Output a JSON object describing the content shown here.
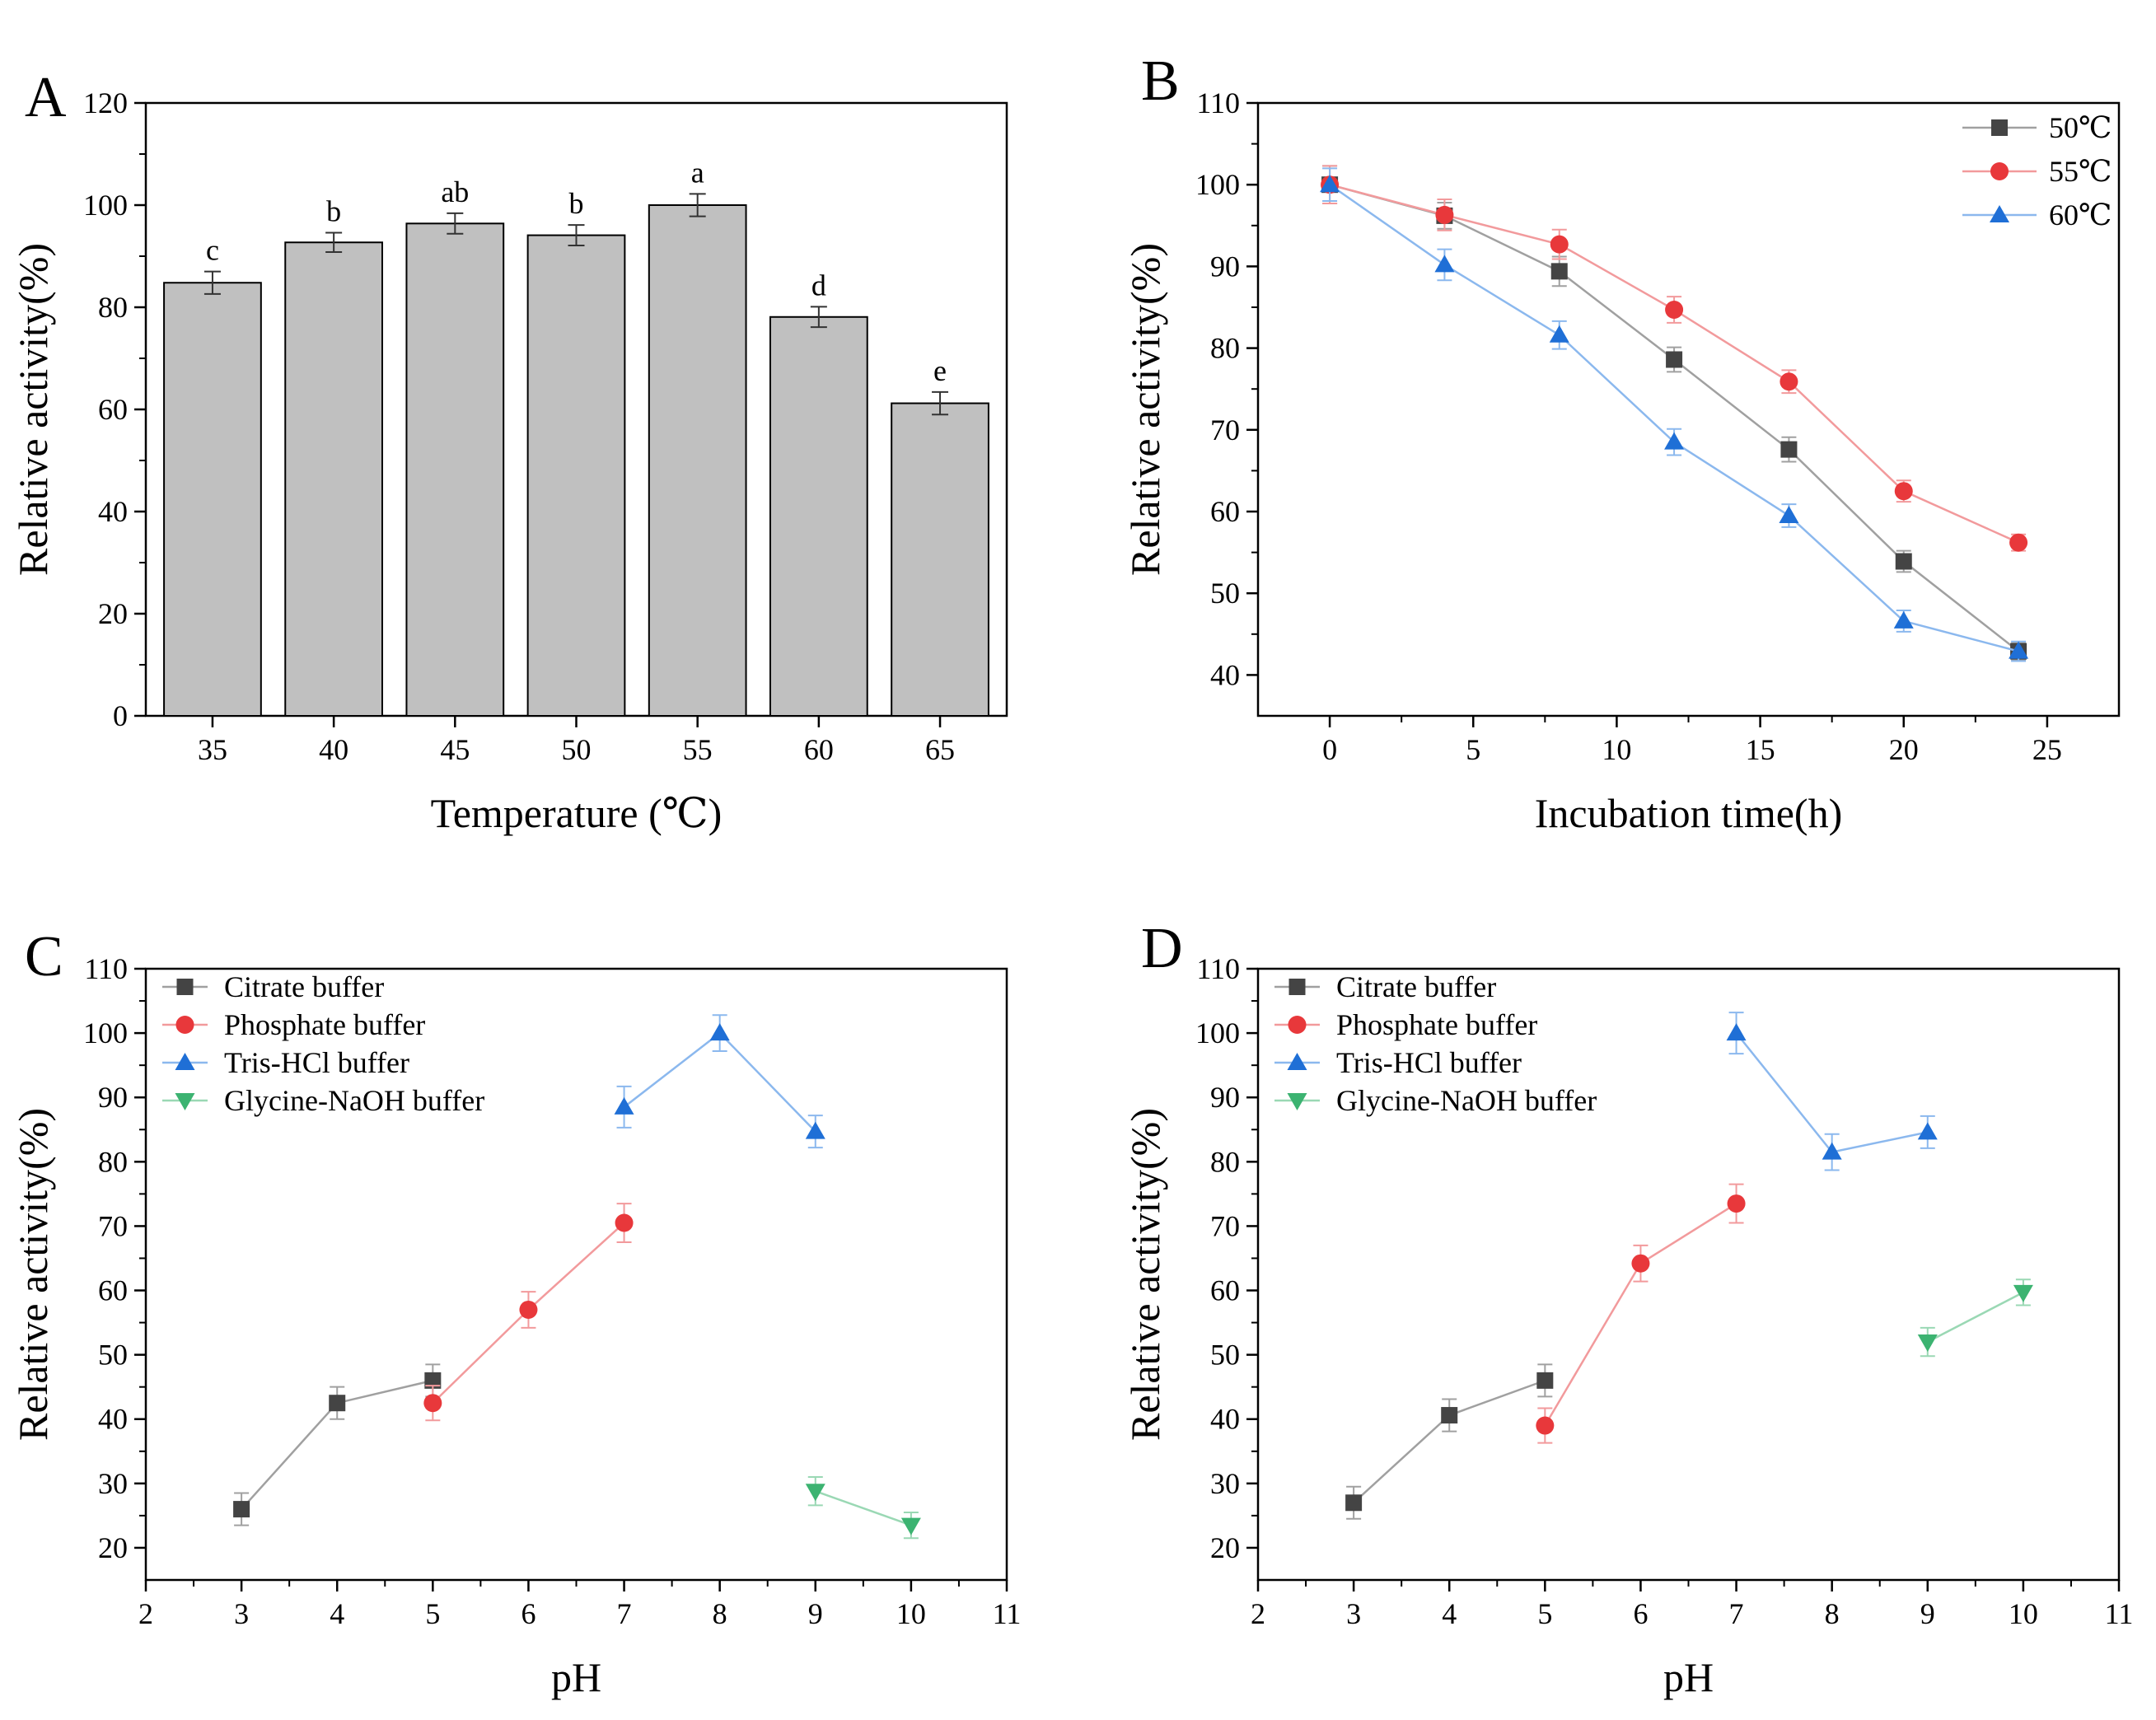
{
  "figure": {
    "description_labels": [
      "A",
      "B",
      "C",
      "D"
    ]
  },
  "chart_data": [
    {
      "panel": "A",
      "type": "bar",
      "xlabel": "Temperature (℃)",
      "ylabel": "Relative activity(%)",
      "ylim": [
        0,
        120
      ],
      "yticks": [
        0,
        20,
        40,
        60,
        80,
        100,
        120
      ],
      "categories": [
        "35",
        "40",
        "45",
        "50",
        "55",
        "60",
        "65"
      ],
      "values": [
        84.8,
        92.7,
        96.4,
        94.1,
        100,
        78.1,
        61.2
      ],
      "errors": [
        2.2,
        1.9,
        2.0,
        2.0,
        2.2,
        2.0,
        2.2
      ],
      "significance": [
        "c",
        "b",
        "ab",
        "b",
        "a",
        "d",
        "e"
      ],
      "bar_color": "#c0c0c0"
    },
    {
      "panel": "B",
      "type": "line",
      "xlabel": "Incubation time(h)",
      "ylabel": "Relative activity(%)",
      "xlim": [
        -2.5,
        27.5
      ],
      "ylim": [
        35,
        110
      ],
      "xticks": [
        0,
        5,
        10,
        15,
        20,
        25
      ],
      "yticks": [
        40,
        50,
        60,
        70,
        80,
        90,
        100,
        110
      ],
      "legend": "top-right",
      "series": [
        {
          "name": "50℃",
          "marker": "square",
          "color": "#444444",
          "line": "#a0a0a0",
          "x": [
            0,
            4,
            8,
            12,
            16,
            20,
            24
          ],
          "y": [
            100,
            96.2,
            89.4,
            78.6,
            67.6,
            53.9,
            42.9
          ],
          "err": [
            2.3,
            1.6,
            1.8,
            1.5,
            1.5,
            1.3,
            1.0
          ]
        },
        {
          "name": "55℃",
          "marker": "circle",
          "color": "#e8383b",
          "line": "#f29a9c",
          "x": [
            0,
            4,
            8,
            12,
            16,
            20,
            24
          ],
          "y": [
            100,
            96.3,
            92.7,
            84.7,
            75.9,
            62.5,
            56.2
          ],
          "err": [
            2.3,
            1.9,
            1.8,
            1.6,
            1.4,
            1.3,
            1.0
          ]
        },
        {
          "name": "60℃",
          "marker": "triangle-up",
          "color": "#1f6fd6",
          "line": "#8bb8ee",
          "x": [
            0,
            4,
            8,
            12,
            16,
            20,
            24
          ],
          "y": [
            100,
            90.2,
            81.6,
            68.5,
            59.5,
            46.6,
            42.9
          ],
          "err": [
            2.0,
            1.9,
            1.7,
            1.6,
            1.4,
            1.3,
            1.2
          ]
        }
      ]
    },
    {
      "panel": "C",
      "type": "line",
      "xlabel": "pH",
      "ylabel": "Relative activity(%)",
      "xlim": [
        2,
        11
      ],
      "ylim": [
        15,
        110
      ],
      "xticks": [
        2,
        3,
        4,
        5,
        6,
        7,
        8,
        9,
        10,
        11
      ],
      "yticks": [
        20,
        30,
        40,
        50,
        60,
        70,
        80,
        90,
        100,
        110
      ],
      "legend": "top-left",
      "series": [
        {
          "name": "Citrate buffer",
          "marker": "square",
          "color": "#444444",
          "line": "#a0a0a0",
          "x": [
            3,
            4,
            5
          ],
          "y": [
            26.0,
            42.5,
            46.0
          ],
          "err": [
            2.5,
            2.5,
            2.5
          ]
        },
        {
          "name": "Phosphate buffer",
          "marker": "circle",
          "color": "#e8383b",
          "line": "#f29a9c",
          "x": [
            5,
            6,
            7
          ],
          "y": [
            42.5,
            57.0,
            70.5
          ],
          "err": [
            2.7,
            2.8,
            3.0
          ]
        },
        {
          "name": "Tris-HCl buffer",
          "marker": "triangle-up",
          "color": "#1f6fd6",
          "line": "#8bb8ee",
          "x": [
            7,
            8,
            9
          ],
          "y": [
            88.5,
            100,
            84.7
          ],
          "err": [
            3.2,
            2.8,
            2.5
          ]
        },
        {
          "name": "Glycine-NaOH buffer",
          "marker": "triangle-down",
          "color": "#3cb371",
          "line": "#9ad8b4",
          "x": [
            9,
            10
          ],
          "y": [
            28.8,
            23.5
          ],
          "err": [
            2.2,
            2.0
          ]
        }
      ]
    },
    {
      "panel": "D",
      "type": "line",
      "xlabel": "pH",
      "ylabel": "Relative activity(%)",
      "xlim": [
        2,
        11
      ],
      "ylim": [
        15,
        110
      ],
      "xticks": [
        2,
        3,
        4,
        5,
        6,
        7,
        8,
        9,
        10,
        11
      ],
      "yticks": [
        20,
        30,
        40,
        50,
        60,
        70,
        80,
        90,
        100,
        110
      ],
      "legend": "top-left",
      "series": [
        {
          "name": "Citrate buffer",
          "marker": "square",
          "color": "#444444",
          "line": "#a0a0a0",
          "x": [
            3,
            4,
            5
          ],
          "y": [
            27.0,
            40.6,
            46.0
          ],
          "err": [
            2.5,
            2.5,
            2.5
          ]
        },
        {
          "name": "Phosphate buffer",
          "marker": "circle",
          "color": "#e8383b",
          "line": "#f29a9c",
          "x": [
            5,
            6,
            7
          ],
          "y": [
            39.0,
            64.2,
            73.5
          ],
          "err": [
            2.7,
            2.8,
            3.0
          ]
        },
        {
          "name": "Tris-HCl buffer",
          "marker": "triangle-up",
          "color": "#1f6fd6",
          "line": "#8bb8ee",
          "x": [
            7,
            8,
            9
          ],
          "y": [
            100,
            81.5,
            84.6
          ],
          "err": [
            3.2,
            2.8,
            2.5
          ]
        },
        {
          "name": "Glycine-NaOH buffer",
          "marker": "triangle-down",
          "color": "#3cb371",
          "line": "#9ad8b4",
          "x": [
            9,
            10
          ],
          "y": [
            52.0,
            59.7
          ],
          "err": [
            2.2,
            2.0
          ]
        }
      ]
    }
  ]
}
